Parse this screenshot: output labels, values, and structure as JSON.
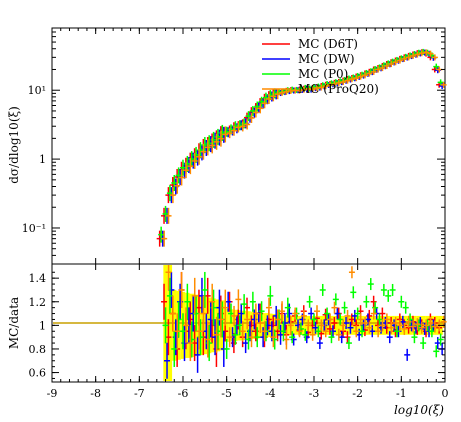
{
  "chart_data": [
    {
      "type": "scatter",
      "panel": "main",
      "xlabel": "log10(ξ)",
      "ylabel": "dσ/dlog10(ξ)",
      "yscale": "log",
      "xlim": [
        -9,
        0
      ],
      "ylim": [
        0.03,
        80
      ],
      "y_ticks": [
        {
          "value": 0.1,
          "label": "10⁻¹"
        },
        {
          "value": 1,
          "label": "1"
        },
        {
          "value": 10,
          "label": "10¹"
        }
      ],
      "legend_position": "top-right",
      "x": [
        -6.5,
        -6.4,
        -6.3,
        -6.2,
        -6.1,
        -6.0,
        -5.9,
        -5.8,
        -5.7,
        -5.6,
        -5.5,
        -5.4,
        -5.3,
        -5.2,
        -5.1,
        -5.0,
        -4.9,
        -4.8,
        -4.7,
        -4.6,
        -4.5,
        -4.4,
        -4.3,
        -4.2,
        -4.1,
        -4.0,
        -3.9,
        -3.8,
        -3.7,
        -3.6,
        -3.5,
        -3.4,
        -3.3,
        -3.2,
        -3.1,
        -3.0,
        -2.9,
        -2.8,
        -2.7,
        -2.6,
        -2.5,
        -2.4,
        -2.3,
        -2.2,
        -2.1,
        -2.0,
        -1.9,
        -1.8,
        -1.7,
        -1.6,
        -1.5,
        -1.4,
        -1.3,
        -1.2,
        -1.1,
        -1.0,
        -0.9,
        -0.8,
        -0.7,
        -0.6,
        -0.5,
        -0.4,
        -0.3,
        -0.2,
        -0.1
      ],
      "series": [
        {
          "name": "MC (D6T)",
          "color": "#ff0000",
          "values": [
            0.07,
            0.15,
            0.3,
            0.42,
            0.55,
            0.7,
            0.8,
            0.95,
            1.1,
            1.3,
            1.5,
            1.6,
            1.8,
            2.0,
            2.3,
            2.4,
            2.6,
            2.9,
            3.0,
            3.2,
            4.0,
            4.8,
            5.5,
            6.5,
            7.5,
            8.2,
            8.8,
            9.2,
            9.5,
            9.8,
            10.0,
            9.9,
            10.2,
            10.5,
            10.3,
            10.8,
            11.0,
            11.5,
            12.0,
            12.3,
            12.8,
            13.2,
            13.8,
            14.5,
            15.0,
            15.8,
            16.5,
            17.5,
            18.5,
            20.0,
            21.0,
            22.5,
            24.0,
            25.5,
            27.0,
            28.5,
            30.0,
            31.5,
            33.0,
            34.5,
            35.5,
            34.0,
            30.0,
            20.0,
            12.0
          ]
        },
        {
          "name": "MC (DW)",
          "color": "#0000ff",
          "values": [
            0.07,
            0.15,
            0.3,
            0.4,
            0.55,
            0.68,
            0.82,
            0.95,
            1.05,
            1.25,
            1.45,
            1.65,
            1.85,
            2.05,
            2.25,
            2.45,
            2.6,
            2.8,
            3.1,
            3.3,
            4.0,
            4.7,
            5.6,
            6.4,
            7.4,
            8.1,
            8.7,
            9.1,
            9.4,
            9.7,
            9.9,
            10.0,
            10.1,
            10.4,
            10.2,
            10.7,
            10.9,
            11.4,
            11.9,
            12.2,
            12.7,
            13.1,
            13.7,
            14.3,
            14.9,
            15.6,
            16.3,
            17.3,
            18.3,
            19.8,
            20.8,
            22.3,
            23.8,
            25.3,
            26.8,
            28.3,
            29.8,
            31.3,
            32.8,
            34.2,
            35.2,
            33.8,
            29.5,
            19.5,
            11.5
          ]
        },
        {
          "name": "MC (P0)",
          "color": "#00ff00",
          "values": [
            0.08,
            0.16,
            0.32,
            0.45,
            0.58,
            0.75,
            0.85,
            1.0,
            1.15,
            1.35,
            1.6,
            1.7,
            1.9,
            2.1,
            2.4,
            2.5,
            2.7,
            3.0,
            3.1,
            3.3,
            4.2,
            5.0,
            5.8,
            6.8,
            7.8,
            8.5,
            9.0,
            9.4,
            9.6,
            10.0,
            10.2,
            10.1,
            10.5,
            10.8,
            10.6,
            11.1,
            11.3,
            11.8,
            12.3,
            12.6,
            13.1,
            13.5,
            14.1,
            14.8,
            15.3,
            16.1,
            16.8,
            17.8,
            18.8,
            20.3,
            21.4,
            23.0,
            24.5,
            26.0,
            27.5,
            29.0,
            30.5,
            32.0,
            33.5,
            35.0,
            36.0,
            35.0,
            32.0,
            22.0,
            13.0
          ]
        },
        {
          "name": "MC (ProQ20)",
          "color": "#ff8c00",
          "values": [
            0.07,
            0.15,
            0.3,
            0.41,
            0.54,
            0.69,
            0.79,
            0.94,
            1.08,
            1.28,
            1.48,
            1.58,
            1.78,
            1.98,
            2.28,
            2.38,
            2.58,
            2.88,
            2.98,
            3.18,
            3.95,
            4.75,
            5.45,
            6.45,
            7.45,
            8.15,
            8.75,
            9.15,
            9.45,
            9.75,
            9.95,
            9.85,
            10.15,
            10.45,
            10.25,
            10.75,
            10.95,
            11.45,
            11.95,
            12.25,
            12.75,
            13.15,
            13.75,
            14.45,
            14.95,
            15.75,
            16.45,
            17.45,
            18.45,
            19.95,
            20.95,
            22.45,
            23.95,
            25.45,
            26.95,
            28.45,
            29.95,
            31.45,
            32.95,
            34.45,
            35.45,
            33.95,
            29.95,
            19.95,
            11.95
          ]
        }
      ]
    },
    {
      "type": "scatter",
      "panel": "ratio",
      "xlabel": "log10(ξ)",
      "ylabel": "MC/data",
      "xlim": [
        -9,
        0
      ],
      "ylim": [
        0.52,
        1.52
      ],
      "y_ticks": [
        0.6,
        0.8,
        1,
        1.2,
        1.4
      ],
      "x_ticks": [
        -9,
        -8,
        -7,
        -6,
        -5,
        -4,
        -3,
        -2,
        -1,
        0
      ],
      "reference_color": "#c8a000",
      "band_color": "#ffff00",
      "x": [
        -6.4,
        -6.3,
        -6.2,
        -6.1,
        -6.0,
        -5.9,
        -5.8,
        -5.7,
        -5.6,
        -5.5,
        -5.4,
        -5.3,
        -5.2,
        -5.1,
        -5.0,
        -4.9,
        -4.8,
        -4.7,
        -4.6,
        -4.5,
        -4.4,
        -4.3,
        -4.2,
        -4.1,
        -4.0,
        -3.9,
        -3.8,
        -3.7,
        -3.6,
        -3.5,
        -3.4,
        -3.3,
        -3.2,
        -3.1,
        -3.0,
        -2.9,
        -2.8,
        -2.7,
        -2.6,
        -2.5,
        -2.4,
        -2.3,
        -2.2,
        -2.1,
        -2.0,
        -1.9,
        -1.8,
        -1.7,
        -1.6,
        -1.5,
        -1.4,
        -1.3,
        -1.2,
        -1.1,
        -1.0,
        -0.9,
        -0.8,
        -0.7,
        -0.6,
        -0.5,
        -0.4,
        -0.3,
        -0.2,
        -0.1
      ],
      "series": [
        {
          "name": "MC (D6T)",
          "color": "#ff0000",
          "values": [
            1.2,
            0.9,
            1.1,
            0.8,
            1.3,
            0.95,
            1.05,
            0.85,
            1.15,
            0.9,
            1.25,
            1.0,
            0.8,
            1.1,
            0.95,
            1.2,
            0.85,
            1.05,
            0.9,
            1.15,
            1.0,
            0.95,
            1.1,
            0.9,
            1.05,
            1.0,
            0.95,
            1.1,
            0.92,
            1.03,
            1.08,
            0.96,
            1.12,
            0.94,
            1.0,
            1.06,
            0.93,
            1.09,
            0.97,
            1.02,
            1.1,
            0.95,
            0.9,
            1.05,
            1.0,
            1.12,
            0.96,
            1.08,
            1.2,
            1.0,
            1.1,
            0.98,
            1.02,
            0.95,
            1.05,
            1.0,
            0.98,
            1.03,
            0.97,
            1.0,
            0.95,
            1.05,
            1.02,
            0.98
          ]
        },
        {
          "name": "MC (DW)",
          "color": "#0000ff",
          "values": [
            0.7,
            1.3,
            0.9,
            1.2,
            0.85,
            1.0,
            1.1,
            0.75,
            1.25,
            0.95,
            1.05,
            0.9,
            1.15,
            0.8,
            1.2,
            0.9,
            1.0,
            1.1,
            0.85,
            0.95,
            1.05,
            1.1,
            0.9,
            1.0,
            0.95,
            1.08,
            0.92,
            1.02,
            1.1,
            0.88,
            1.0,
            1.05,
            0.9,
            1.1,
            0.98,
            0.85,
            1.0,
            1.05,
            0.95,
            1.1,
            0.9,
            1.02,
            0.98,
            1.08,
            0.92,
            1.0,
            1.05,
            0.95,
            1.1,
            0.98,
            1.02,
            0.9,
            1.0,
            0.95,
            1.03,
            0.75,
            1.0,
            0.98,
            1.02,
            0.97,
            0.95,
            1.0,
            0.85,
            0.8
          ]
        },
        {
          "name": "MC (P0)",
          "color": "#00ff00",
          "values": [
            1.0,
            1.25,
            0.8,
            1.05,
            0.95,
            1.2,
            0.88,
            1.1,
            0.9,
            1.3,
            0.85,
            1.15,
            0.95,
            1.05,
            0.8,
            1.1,
            0.92,
            1.0,
            1.18,
            0.88,
            1.2,
            0.9,
            1.12,
            0.95,
            1.25,
            0.88,
            1.05,
            0.95,
            1.15,
            0.9,
            1.1,
            0.97,
            0.92,
            1.2,
            1.05,
            0.95,
            1.3,
            1.1,
            0.9,
            1.22,
            1.05,
            1.15,
            0.85,
            1.28,
            1.1,
            0.95,
            1.2,
            1.35,
            1.15,
            1.05,
            1.3,
            1.25,
            1.3,
            0.95,
            1.2,
            1.15,
            1.05,
            0.9,
            1.0,
            0.85,
            1.0,
            0.95,
            0.78,
            0.88
          ]
        },
        {
          "name": "MC (ProQ20)",
          "color": "#ff8c00",
          "values": [
            1.45,
            1.1,
            0.95,
            1.3,
            1.0,
            0.85,
            1.25,
            0.95,
            1.1,
            0.88,
            1.2,
            0.92,
            1.05,
            1.15,
            0.9,
            1.08,
            1.22,
            0.95,
            1.05,
            0.9,
            1.1,
            1.02,
            0.95,
            1.15,
            0.9,
            1.05,
            1.12,
            0.88,
            1.0,
            1.1,
            0.95,
            1.08,
            1.0,
            0.92,
            1.12,
            1.0,
            0.95,
            1.05,
            1.15,
            0.92,
            1.0,
            1.08,
            1.45,
            0.95,
            1.05,
            1.02,
            0.98,
            1.1,
            0.95,
            1.0,
            1.05,
            0.98,
            1.02,
            1.0,
            0.97,
            1.03,
            0.99,
            1.01,
            0.98,
            1.0,
            1.02,
            0.99,
            1.0,
            1.03
          ]
        }
      ]
    }
  ]
}
